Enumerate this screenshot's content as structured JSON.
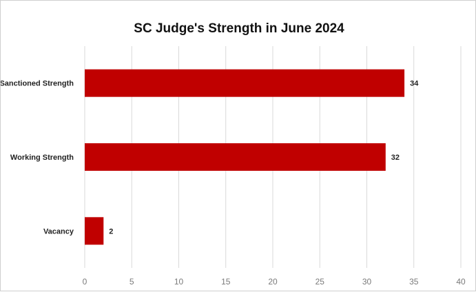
{
  "chart_data": {
    "type": "bar",
    "orientation": "horizontal",
    "title": "SC Judge's Strength in June 2024",
    "categories": [
      "Sanctioned Strength",
      "Working Strength",
      "Vacancy"
    ],
    "values": [
      34,
      32,
      2
    ],
    "data_labels": [
      "34",
      "32",
      "2"
    ],
    "xlim": [
      0,
      40
    ],
    "xticks": [
      "0",
      "5",
      "10",
      "15",
      "20",
      "25",
      "30",
      "35",
      "40"
    ],
    "xlabel": "",
    "ylabel": "",
    "grid": "vertical",
    "legend": "none",
    "bar_color": "#c00000"
  }
}
